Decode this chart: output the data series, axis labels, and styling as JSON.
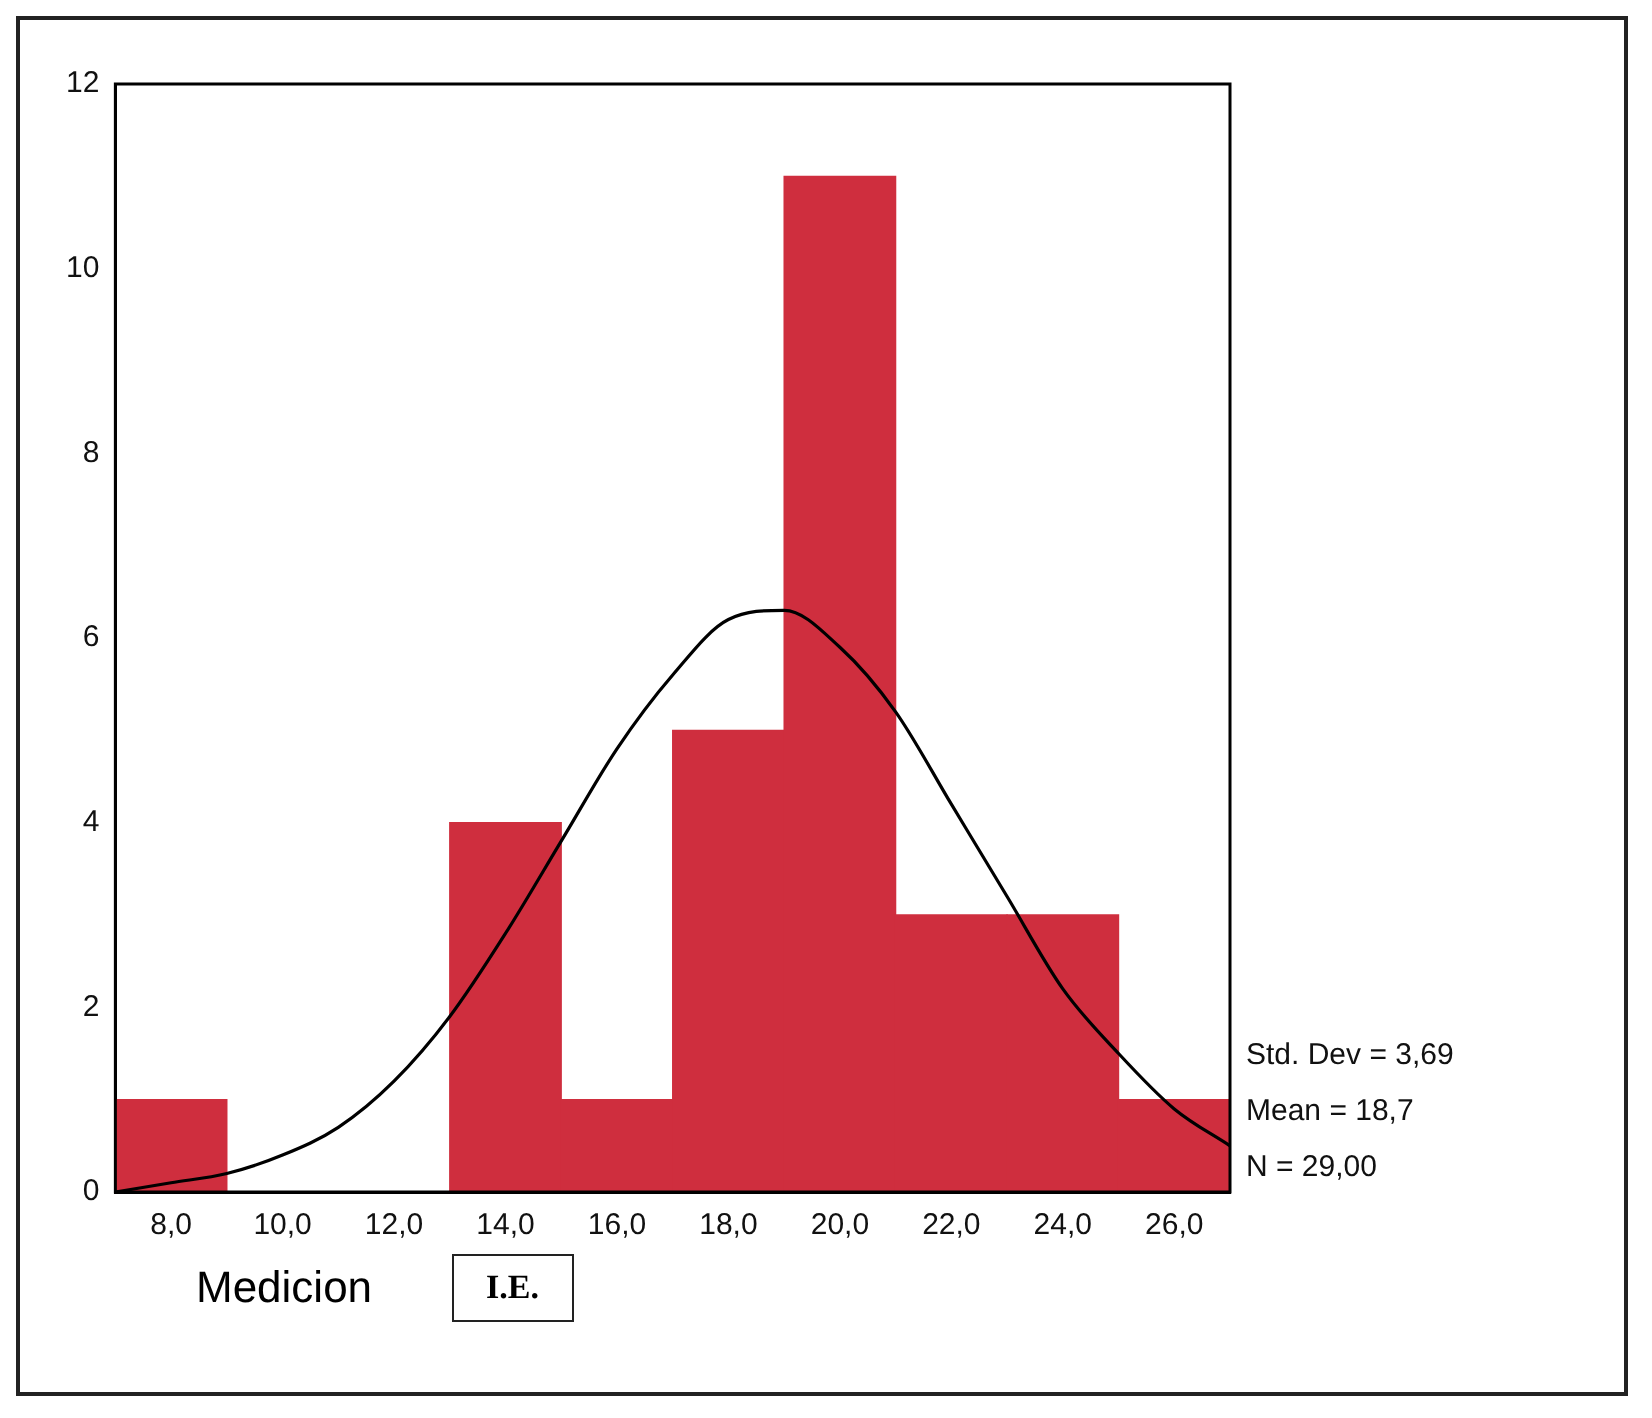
{
  "chart_data": {
    "type": "histogram",
    "xlabel": "Medicion",
    "color": "#cf2e3e",
    "bins": [
      7,
      9,
      11,
      13,
      15,
      17,
      19,
      21,
      23,
      25,
      27
    ],
    "values": [
      1,
      0,
      0,
      4,
      1,
      5,
      11,
      3,
      3,
      1
    ],
    "xlim": [
      7,
      27
    ],
    "xticks": [
      {
        "value": 8,
        "label": "8,0"
      },
      {
        "value": 10,
        "label": "10,0"
      },
      {
        "value": 12,
        "label": "12,0"
      },
      {
        "value": 14,
        "label": "14,0"
      },
      {
        "value": 16,
        "label": "16,0"
      },
      {
        "value": 18,
        "label": "18,0"
      },
      {
        "value": 20,
        "label": "20,0"
      },
      {
        "value": 22,
        "label": "22,0"
      },
      {
        "value": 24,
        "label": "24,0"
      },
      {
        "value": 26,
        "label": "26,0"
      }
    ],
    "ylim": [
      0,
      12
    ],
    "yticks": [
      0,
      2,
      4,
      6,
      8,
      10,
      12
    ],
    "grid": false,
    "marker": "none",
    "series": [
      {
        "type": "line",
        "color": "#000000",
        "x": [
          7,
          8,
          9,
          10,
          11,
          12,
          13,
          14,
          15,
          16,
          17,
          18,
          19,
          20,
          21,
          22,
          23,
          24,
          25,
          26,
          27
        ],
        "values": [
          0.0,
          0.1,
          0.2,
          0.4,
          0.7,
          1.2,
          1.9,
          2.8,
          3.8,
          4.8,
          5.6,
          6.2,
          6.3,
          5.9,
          5.2,
          4.2,
          3.2,
          2.2,
          1.5,
          0.9,
          0.5
        ]
      }
    ],
    "annotations": [
      "Std. Dev = 3,69",
      "Mean = 18,7",
      "N = 29,00",
      "I.E."
    ]
  }
}
